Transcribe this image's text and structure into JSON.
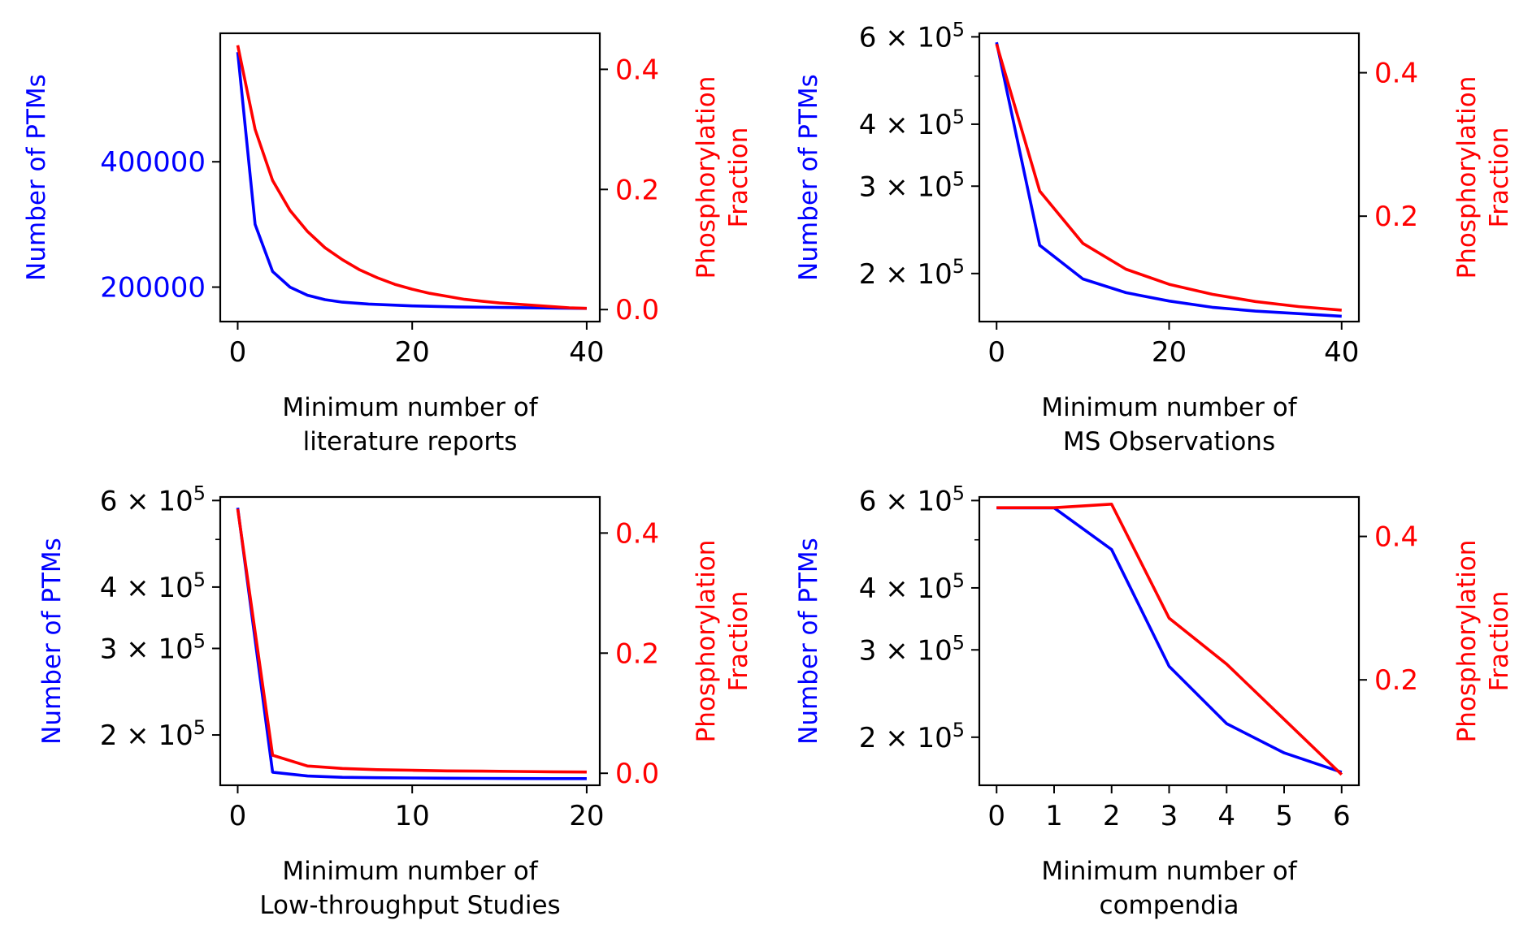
{
  "chart_data": [
    {
      "type": "line",
      "xlabel": [
        "Minimum number of",
        "literature reports"
      ],
      "ylabel_left": "Number of PTMs",
      "ylabel_right": [
        "Phosphorylation",
        "Fraction"
      ],
      "left_axis": {
        "scale": "linear",
        "color": "#0000ff",
        "ylim": [
          145000,
          605000
        ],
        "ticks": [
          200000,
          400000
        ],
        "tick_labels": [
          "200000",
          "400000"
        ],
        "tick_color": "#0000ff"
      },
      "right_axis": {
        "scale": "linear",
        "color": "#ff0000",
        "ylim": [
          -0.02,
          0.46
        ],
        "ticks": [
          0.0,
          0.2,
          0.4
        ],
        "tick_labels": [
          "0.0",
          "0.2",
          "0.4"
        ]
      },
      "xlim": [
        -2,
        41.5
      ],
      "xticks": [
        0,
        20,
        40
      ],
      "xtick_labels": [
        "0",
        "20",
        "40"
      ],
      "grid": false,
      "series": [
        {
          "axis": "left",
          "color": "#0000ff",
          "x": [
            0,
            2,
            4,
            6,
            8,
            10,
            12,
            15,
            20,
            25,
            30,
            35,
            40
          ],
          "y": [
            575000,
            300000,
            225000,
            200000,
            187000,
            180000,
            176000,
            173000,
            170000,
            168500,
            167500,
            166800,
            166000
          ]
        },
        {
          "axis": "right",
          "color": "#ff0000",
          "x": [
            0,
            2,
            4,
            6,
            8,
            10,
            12,
            14,
            16,
            18,
            20,
            22,
            24,
            26,
            28,
            30,
            32,
            34,
            36,
            38,
            40
          ],
          "y": [
            0.44,
            0.3,
            0.215,
            0.165,
            0.13,
            0.103,
            0.083,
            0.066,
            0.053,
            0.042,
            0.034,
            0.027,
            0.022,
            0.017,
            0.014,
            0.011,
            0.009,
            0.007,
            0.005,
            0.003,
            0.002
          ]
        }
      ]
    },
    {
      "type": "line",
      "xlabel": [
        "Minimum number of",
        "MS Observations"
      ],
      "ylabel_left": "Number of PTMs",
      "ylabel_right": [
        "Phosphorylation",
        "Fraction"
      ],
      "left_axis": {
        "scale": "log",
        "color": "#0000ff",
        "ylim": [
          160000,
          610000
        ],
        "ticks": [
          200000,
          300000,
          400000,
          600000
        ],
        "tick_labels": [
          "2 × 10^5",
          "3 × 10^5",
          "4 × 10^5",
          "6 × 10^5"
        ],
        "minor_ticks": [
          500000
        ],
        "tick_color": "#000000"
      },
      "right_axis": {
        "scale": "linear",
        "color": "#ff0000",
        "ylim": [
          0.053,
          0.455
        ],
        "ticks": [
          0.2,
          0.4
        ],
        "tick_labels": [
          "0.2",
          "0.4"
        ]
      },
      "xlim": [
        -2,
        42
      ],
      "xticks": [
        0,
        20,
        40
      ],
      "xtick_labels": [
        "0",
        "20",
        "40"
      ],
      "grid": false,
      "series": [
        {
          "axis": "left",
          "color": "#0000ff",
          "x": [
            0,
            5,
            10,
            15,
            20,
            25,
            30,
            35,
            40
          ],
          "y": [
            585000,
            228000,
            195000,
            183000,
            176000,
            171000,
            168000,
            166000,
            164000
          ]
        },
        {
          "axis": "right",
          "color": "#ff0000",
          "x": [
            0,
            5,
            10,
            15,
            20,
            25,
            30,
            35,
            40
          ],
          "y": [
            0.44,
            0.235,
            0.162,
            0.126,
            0.105,
            0.091,
            0.081,
            0.074,
            0.069
          ]
        }
      ]
    },
    {
      "type": "line",
      "xlabel": [
        "Minimum number of",
        "Low-throughput Studies"
      ],
      "ylabel_left": "Number of PTMs",
      "ylabel_right": [
        "Phosphorylation",
        "Fraction"
      ],
      "left_axis": {
        "scale": "log",
        "color": "#0000ff",
        "ylim": [
          158000,
          610000
        ],
        "ticks": [
          200000,
          300000,
          400000,
          600000
        ],
        "tick_labels": [
          "2 × 10^5",
          "3 × 10^5",
          "4 × 10^5",
          "6 × 10^5"
        ],
        "minor_ticks": [
          500000
        ],
        "tick_color": "#000000"
      },
      "right_axis": {
        "scale": "linear",
        "color": "#ff0000",
        "ylim": [
          -0.02,
          0.46
        ],
        "ticks": [
          0.0,
          0.2,
          0.4
        ],
        "tick_labels": [
          "0.0",
          "0.2",
          "0.4"
        ]
      },
      "xlim": [
        -1,
        20.75
      ],
      "xticks": [
        0,
        10,
        20
      ],
      "xtick_labels": [
        "0",
        "10",
        "20"
      ],
      "grid": false,
      "series": [
        {
          "axis": "left",
          "color": "#0000ff",
          "x": [
            0,
            2,
            4,
            6,
            8,
            10,
            12,
            14,
            16,
            18,
            20
          ],
          "y": [
            580000,
            168000,
            165000,
            164000,
            163700,
            163500,
            163300,
            163200,
            163100,
            163000,
            163000
          ]
        },
        {
          "axis": "right",
          "color": "#ff0000",
          "x": [
            0,
            2,
            4,
            6,
            8,
            10,
            12,
            14,
            16,
            18,
            20
          ],
          "y": [
            0.44,
            0.03,
            0.012,
            0.008,
            0.006,
            0.005,
            0.004,
            0.0035,
            0.003,
            0.0025,
            0.002
          ]
        }
      ]
    },
    {
      "type": "line",
      "xlabel": [
        "Minimum number of",
        "compendia"
      ],
      "ylabel_left": "Number of PTMs",
      "ylabel_right": [
        "Phosphorylation",
        "Fraction"
      ],
      "left_axis": {
        "scale": "log",
        "color": "#0000ff",
        "ylim": [
          160000,
          610000
        ],
        "ticks": [
          200000,
          300000,
          400000,
          600000
        ],
        "tick_labels": [
          "2 × 10^5",
          "3 × 10^5",
          "4 × 10^5",
          "6 × 10^5"
        ],
        "minor_ticks": [
          500000
        ],
        "tick_color": "#000000"
      },
      "right_axis": {
        "scale": "linear",
        "color": "#ff0000",
        "ylim": [
          0.053,
          0.455
        ],
        "ticks": [
          0.2,
          0.4
        ],
        "tick_labels": [
          "0.2",
          "0.4"
        ]
      },
      "xlim": [
        -0.3,
        6.3
      ],
      "xticks": [
        0,
        1,
        2,
        3,
        4,
        5,
        6
      ],
      "xtick_labels": [
        "0",
        "1",
        "2",
        "3",
        "4",
        "5",
        "6"
      ],
      "grid": false,
      "series": [
        {
          "axis": "left",
          "color": "#0000ff",
          "x": [
            0,
            1,
            2,
            3,
            4,
            5,
            6
          ],
          "y": [
            580000,
            580000,
            478000,
            278000,
            213000,
            186000,
            170000
          ]
        },
        {
          "axis": "right",
          "color": "#ff0000",
          "x": [
            0,
            1,
            2,
            3,
            4,
            5,
            6
          ],
          "y": [
            0.44,
            0.44,
            0.445,
            0.286,
            0.222,
            0.145,
            0.068
          ]
        }
      ]
    }
  ]
}
